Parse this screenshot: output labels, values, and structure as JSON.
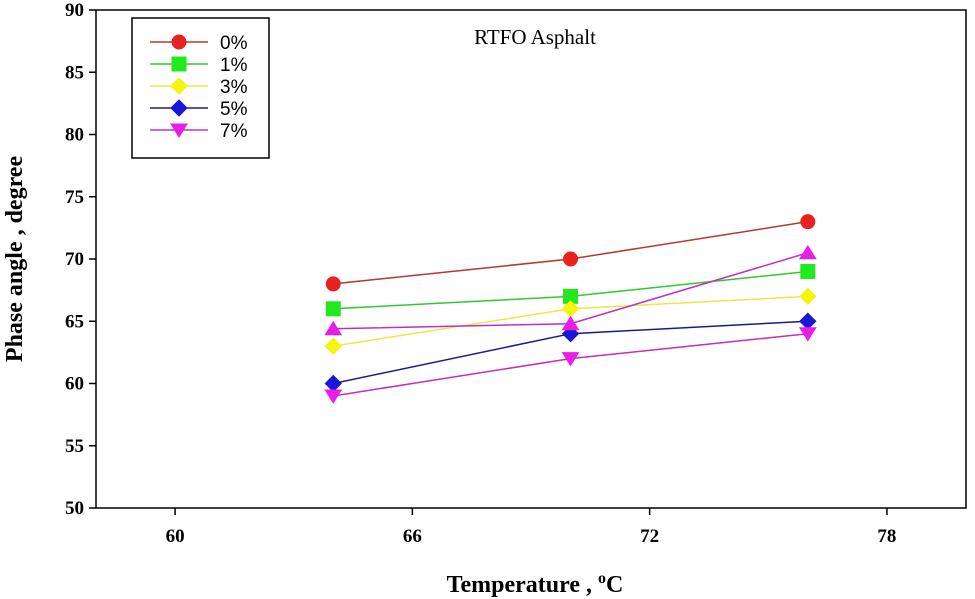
{
  "chart_data": {
    "type": "line",
    "title": "RTFO Asphalt",
    "xlabel": "Temperature , ",
    "xlabel_unit_sup": "o",
    "xlabel_unit": "C",
    "ylabel": "Phase angle , degree",
    "xlim": [
      58,
      80
    ],
    "ylim": [
      50,
      90
    ],
    "xticks": [
      60,
      66,
      72,
      78
    ],
    "yticks": [
      50,
      55,
      60,
      65,
      70,
      75,
      80,
      85,
      90
    ],
    "x": [
      64,
      70,
      76
    ],
    "legend_position": "top-left",
    "series": [
      {
        "name": "0%",
        "marker": "circle",
        "color": "#e8231f",
        "line_color": "#b03a2e",
        "values": [
          68,
          70,
          73
        ]
      },
      {
        "name": "1%",
        "marker": "square",
        "color": "#22e81e",
        "line_color": "#33c833",
        "values": [
          66,
          67,
          69
        ]
      },
      {
        "name": "3%",
        "marker": "diamond",
        "color": "#f4f40f",
        "line_color": "#e8e84a",
        "values": [
          63,
          66,
          67
        ]
      },
      {
        "name": "5%",
        "marker": "diamond",
        "color": "#1818d6",
        "line_color": "#1a1a90",
        "values": [
          60,
          64,
          65
        ]
      },
      {
        "name": "7%",
        "marker": "triangle-down",
        "color": "#e81ee8",
        "line_color": "#c030c0",
        "values": [
          59,
          62,
          64
        ]
      },
      {
        "name": "",
        "marker": "triangle-up",
        "color": "#e81ee8",
        "line_color": "#c030c0",
        "values": [
          64.4,
          64.8,
          70.5
        ]
      }
    ]
  }
}
